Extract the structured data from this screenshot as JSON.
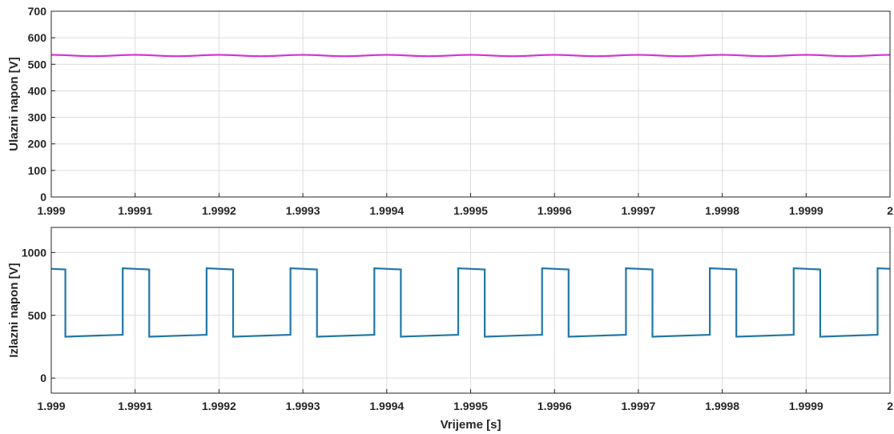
{
  "chart_data": [
    {
      "type": "line",
      "title": "",
      "xlabel": "",
      "ylabel": "Ulazni napon [V]",
      "xlim": [
        1.999,
        2.0
      ],
      "ylim": [
        0,
        700
      ],
      "xticks": [
        "1.999",
        "1.9991",
        "1.9992",
        "1.9993",
        "1.9994",
        "1.9995",
        "1.9996",
        "1.9997",
        "1.9998",
        "1.9999",
        "2"
      ],
      "yticks": [
        "0",
        "100",
        "200",
        "300",
        "400",
        "500",
        "600",
        "700"
      ],
      "grid": true,
      "series": [
        {
          "color": "#d633d6",
          "shape": "ripple",
          "mean": 533,
          "amplitude": 2.5,
          "period": 0.0001
        }
      ]
    },
    {
      "type": "line",
      "title": "",
      "xlabel": "Vrijeme [s]",
      "ylabel": "Izlazni napon [V]",
      "xlim": [
        1.999,
        2.0
      ],
      "ylim": [
        -120,
        1200
      ],
      "xticks": [
        "1.999",
        "1.9991",
        "1.9992",
        "1.9993",
        "1.9994",
        "1.9995",
        "1.9996",
        "1.9997",
        "1.9998",
        "1.9999",
        "2"
      ],
      "yticks": [
        "0",
        "500",
        "1000"
      ],
      "ytick_values": [
        0,
        500,
        1000
      ],
      "grid": true,
      "series": [
        {
          "color": "#1f77a8",
          "shape": "pulse",
          "period": 0.0001,
          "high_start": 875,
          "high_end": 865,
          "low_start": 330,
          "low_end": 345,
          "rise_at": 8.52e-05,
          "fall_at": 1.68e-05
        }
      ]
    }
  ]
}
